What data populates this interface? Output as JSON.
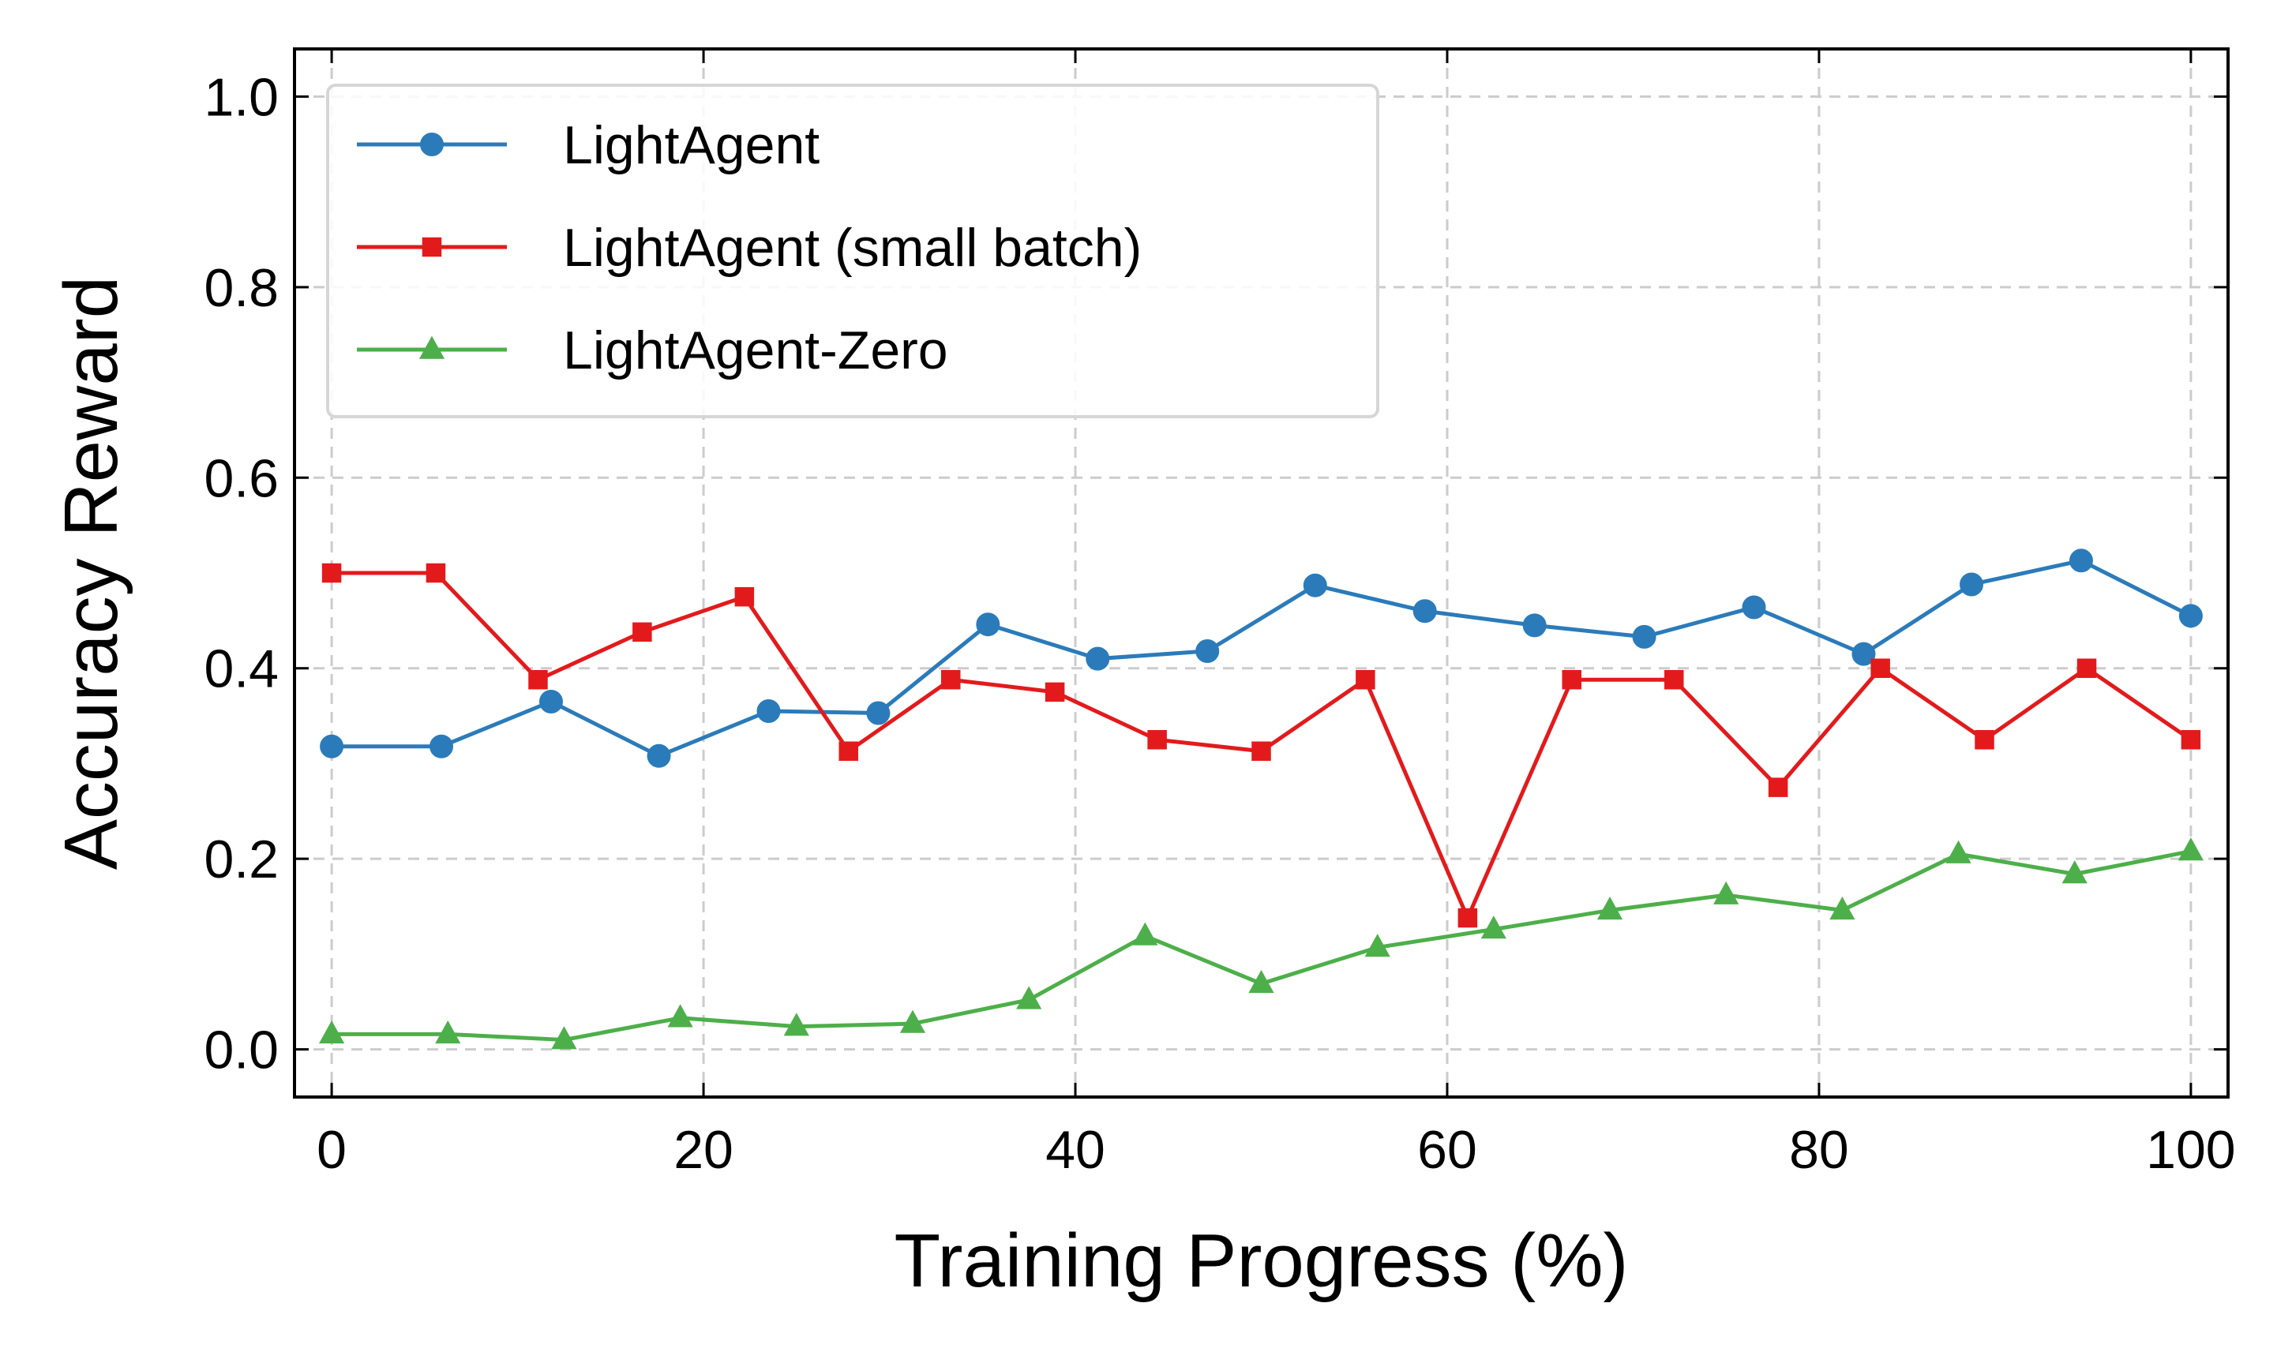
{
  "chart_data": {
    "type": "line",
    "xlabel": "Training Progress (%)",
    "ylabel": "Accuracy Reward",
    "xlim": [
      -2,
      102
    ],
    "ylim": [
      -0.05,
      1.05
    ],
    "xticks": [
      0,
      20,
      40,
      60,
      80,
      100
    ],
    "xtick_labels": [
      "0",
      "20",
      "40",
      "60",
      "80",
      "100"
    ],
    "yticks": [
      0.0,
      0.2,
      0.4,
      0.6,
      0.8,
      1.0
    ],
    "ytick_labels": [
      "0.0",
      "0.2",
      "0.4",
      "0.6",
      "0.8",
      "1.0"
    ],
    "grid": true,
    "legend_position": "upper-left",
    "series": [
      {
        "name": "LightAgent",
        "color": "#2b7bba",
        "marker": "circle",
        "x": [
          0,
          5.9,
          11.8,
          17.6,
          23.5,
          29.4,
          35.3,
          41.2,
          47.1,
          52.9,
          58.8,
          64.7,
          70.6,
          76.5,
          82.4,
          88.2,
          94.1,
          100
        ],
        "y": [
          0.318,
          0.318,
          0.365,
          0.308,
          0.355,
          0.353,
          0.446,
          0.41,
          0.418,
          0.487,
          0.46,
          0.445,
          0.433,
          0.464,
          0.415,
          0.488,
          0.513,
          0.455
        ]
      },
      {
        "name": "LightAgent (small batch)",
        "color": "#e31a1c",
        "marker": "square",
        "x": [
          0,
          5.6,
          11.1,
          16.7,
          22.2,
          27.8,
          33.3,
          38.9,
          44.4,
          50.0,
          55.6,
          61.1,
          66.7,
          72.2,
          77.8,
          83.3,
          88.9,
          94.4,
          100
        ],
        "y": [
          0.5,
          0.5,
          0.388,
          0.438,
          0.475,
          0.313,
          0.388,
          0.375,
          0.325,
          0.313,
          0.388,
          0.138,
          0.388,
          0.388,
          0.275,
          0.4,
          0.325,
          0.4,
          0.325
        ]
      },
      {
        "name": "LightAgent-Zero",
        "color": "#4daf4a",
        "marker": "triangle",
        "x": [
          0,
          6.25,
          12.5,
          18.75,
          25.0,
          31.25,
          37.5,
          43.75,
          50.0,
          56.25,
          62.5,
          68.75,
          75.0,
          81.25,
          87.5,
          93.75,
          100
        ],
        "y": [
          0.016,
          0.016,
          0.01,
          0.033,
          0.024,
          0.027,
          0.052,
          0.119,
          0.069,
          0.107,
          0.126,
          0.146,
          0.162,
          0.146,
          0.205,
          0.184,
          0.208
        ]
      }
    ]
  }
}
